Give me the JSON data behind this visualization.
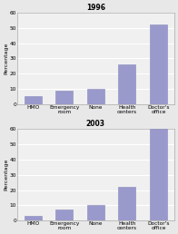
{
  "charts": [
    {
      "title": "1996",
      "categories": [
        "HMO",
        "Emergency\nroom",
        "None",
        "Health\ncenters",
        "Doctor's\noffice"
      ],
      "values": [
        5,
        9,
        10,
        26,
        52
      ],
      "ylim": [
        0,
        60
      ],
      "yticks": [
        0,
        10,
        20,
        30,
        40,
        50,
        60
      ]
    },
    {
      "title": "2003",
      "categories": [
        "HMO",
        "Emergency\nroom",
        "None",
        "Health\ncenters",
        "Doctor's\noffice"
      ],
      "values": [
        3,
        7,
        10,
        22,
        60
      ],
      "ylim": [
        0,
        60
      ],
      "yticks": [
        0,
        10,
        20,
        30,
        40,
        50,
        60
      ]
    }
  ],
  "bar_color": "#9999cc",
  "bar_edge_color": "#8888bb",
  "ylabel": "Percentage",
  "fig_background": "#e8e8e8",
  "ax_background": "#f0f0f0",
  "grid_color": "#ffffff",
  "title_fontsize": 5.5,
  "label_fontsize": 4.2,
  "tick_fontsize": 4.2,
  "ylabel_fontsize": 4.5
}
